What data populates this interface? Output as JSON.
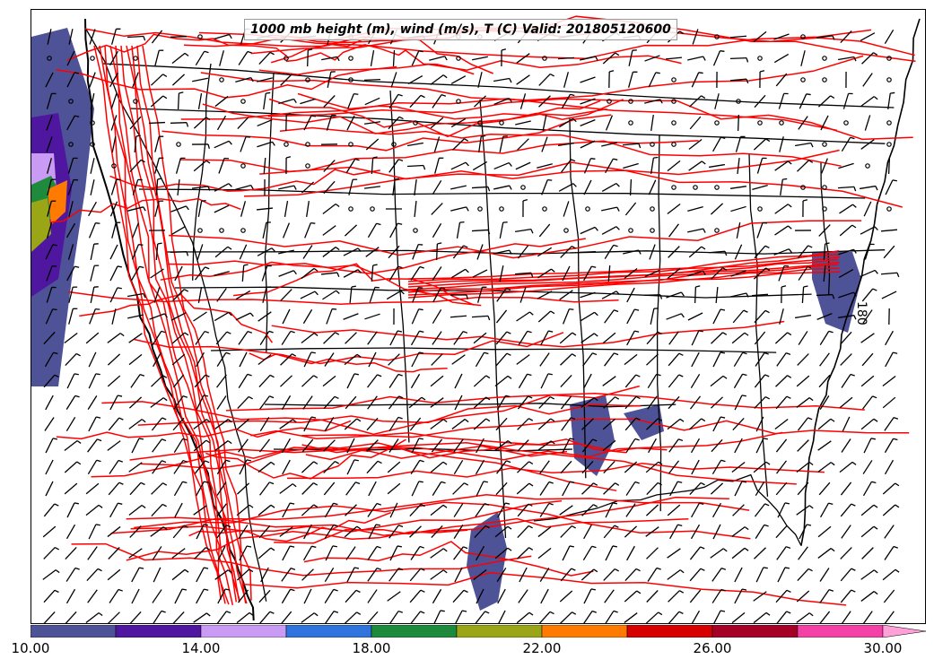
{
  "title": "1000 mb height (m), wind (m/s), T (C) Valid: 201805120600",
  "contour_label": "180",
  "colorbar": {
    "colors": [
      "#4e5296",
      "#4f17a0",
      "#c99bf5",
      "#2e74dc",
      "#1e8a3c",
      "#9ba617",
      "#ff7a00",
      "#d60000",
      "#a50026",
      "#f540a8",
      "#ffa0d8"
    ],
    "ticks": [
      "10.00",
      "14.00",
      "18.00",
      "22.00",
      "26.00",
      "30.00"
    ]
  },
  "map": {
    "height_contour_color": "#ff0000",
    "boundary_color": "#000000",
    "wind_barb_color": "#000000"
  }
}
